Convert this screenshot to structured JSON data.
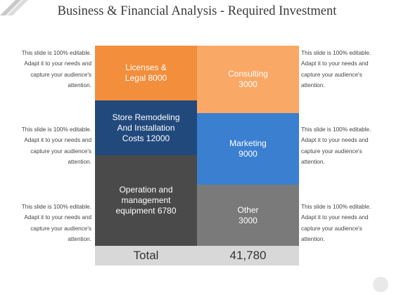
{
  "title": "Business & Financial Analysis - Required Investment",
  "notes": {
    "left_top": "This slide is 100% editable. Adapt it to your needs and capture your audience's attention.",
    "left_middle": "This slide is 100% editable. Adapt it to your needs and capture your audience's attention.",
    "left_bottom": "This slide is 100% editable. Adapt it to your needs and capture your audience's attention.",
    "right_top": "This slide is 100% editable. Adapt it to your needs and capture your audience's attention.",
    "right_middle": "This slide is 100% editable. Adapt it to your needs and capture your audience's attention.",
    "right_bottom": "This slide is 100% editable. Adapt it to your needs and capture your audience's attention."
  },
  "blocks": {
    "licenses": {
      "line1": "Licenses &",
      "line2": "Legal 8000"
    },
    "remodeling": {
      "line1": "Store Remodeling",
      "line2": "And Installation",
      "line3": "Costs 12000"
    },
    "operation": {
      "line1": "Operation and",
      "line2": "management",
      "line3": "equipment 6780"
    },
    "consulting": {
      "line1": "Consulting",
      "line2": "3000"
    },
    "marketing": {
      "line1": "Marketing",
      "line2": "9000"
    },
    "other": {
      "line1": "Other",
      "line2": "3000"
    }
  },
  "total": {
    "label": "Total",
    "value": "41,780"
  },
  "colors": {
    "licenses": "#f28e3c",
    "remodeling": "#21497c",
    "operation": "#4a4a4a",
    "consulting": "#f9a866",
    "marketing": "#3b7fd0",
    "other": "#7a7a7a",
    "total_bar": "#d8d8d8"
  }
}
